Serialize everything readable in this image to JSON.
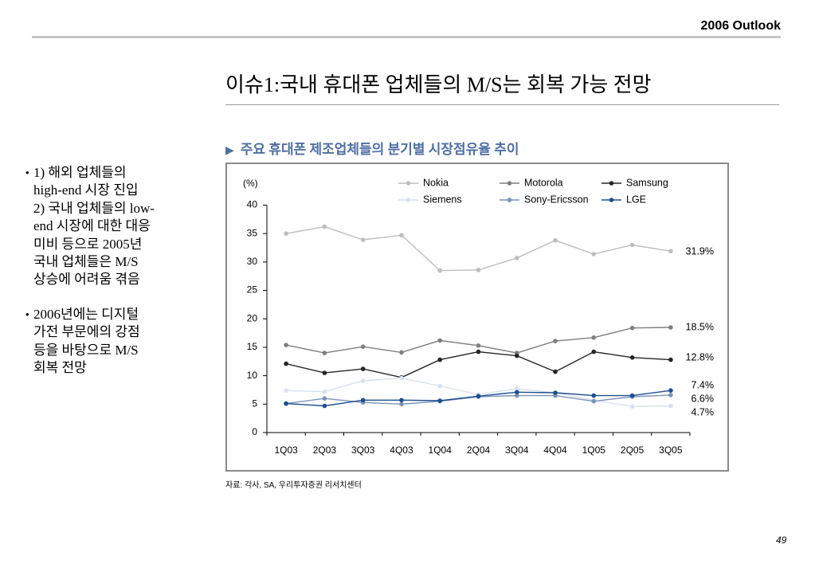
{
  "header": {
    "report_title": "2006 Outlook"
  },
  "slide": {
    "title": "이슈1:국내 휴대폰 업체들의 M/S는 회복 가능 전망",
    "subtitle_marker": "▶",
    "subtitle": "주요 휴대폰 제조업체들의 분기별 시장점유율 추이",
    "bullets": [
      {
        "marker": "•",
        "lines": [
          "1) 해외 업체들의",
          "high-end 시장 진입",
          "2) 국내 업체들의 low-",
          "end 시장에 대한 대응",
          "미비 등으로 2005년",
          "국내 업체들은 M/S",
          "상승에 어려움 겪음"
        ]
      },
      {
        "marker": "•",
        "lines": [
          "2006년에는 디지털",
          "가전 부문에의 강점",
          "등을 바탕으로 M/S",
          "회복 전망"
        ]
      }
    ],
    "source": "자료: 각사, SA, 우리투자증권 리서치센터",
    "page_number": "49"
  },
  "colors": {
    "subtitle_text": "#4f6fa3"
  },
  "chart_data": {
    "type": "line",
    "ylabel": "(%)",
    "xlabel": "",
    "ylim": [
      0,
      40
    ],
    "yticks": [
      0,
      5,
      10,
      15,
      20,
      25,
      30,
      35,
      40
    ],
    "categories": [
      "1Q03",
      "2Q03",
      "3Q03",
      "4Q03",
      "1Q04",
      "2Q04",
      "3Q04",
      "4Q04",
      "1Q05",
      "2Q05",
      "3Q05"
    ],
    "legend": "top",
    "grid": false,
    "series": [
      {
        "name": "Nokia",
        "color": "#bdbdbd",
        "values": [
          35.0,
          36.2,
          33.9,
          34.7,
          28.5,
          28.6,
          30.7,
          33.8,
          31.4,
          33.0,
          31.9
        ],
        "end_label": "31.9%"
      },
      {
        "name": "Motorola",
        "color": "#7f7f7f",
        "values": [
          15.4,
          14.0,
          15.1,
          14.1,
          16.2,
          15.3,
          14.0,
          16.1,
          16.7,
          18.4,
          18.5
        ],
        "end_label": "18.5%"
      },
      {
        "name": "Samsung",
        "color": "#262626",
        "values": [
          12.1,
          10.5,
          11.2,
          9.7,
          12.8,
          14.2,
          13.5,
          10.7,
          14.2,
          13.2,
          12.8
        ],
        "end_label": "12.8%"
      },
      {
        "name": "Siemens",
        "color": "#d9e1ec",
        "values": [
          7.4,
          7.2,
          9.1,
          9.6,
          8.2,
          6.7,
          7.7,
          7.0,
          5.7,
          4.6,
          4.7
        ],
        "end_label": "4.7%"
      },
      {
        "name": "Sony-Ericsson",
        "color": "#7b93b8",
        "values": [
          5.1,
          6.0,
          5.3,
          5.0,
          5.5,
          6.3,
          6.5,
          6.5,
          5.5,
          6.3,
          6.6
        ],
        "end_label": "6.6%"
      },
      {
        "name": "LGE",
        "color": "#1d4f91",
        "values": [
          5.1,
          4.7,
          5.7,
          5.7,
          5.6,
          6.4,
          7.1,
          7.0,
          6.5,
          6.5,
          7.4
        ],
        "end_label": "7.4%"
      }
    ]
  }
}
